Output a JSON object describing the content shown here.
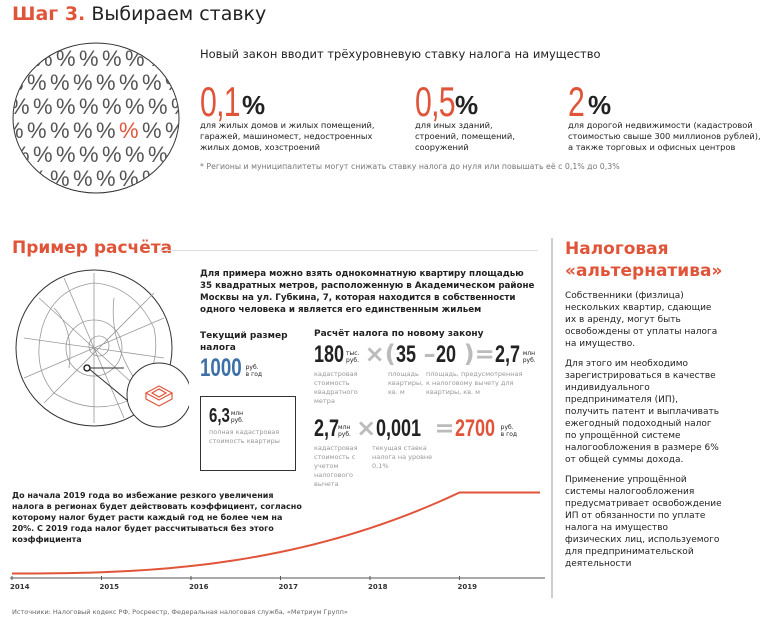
{
  "header": {
    "step": "Шаг 3.",
    "title": "Выбираем ставку"
  },
  "rates": {
    "intro": "Новый закон вводит трёхуровневую ставку налога на имущество",
    "items": [
      {
        "value": "0,1",
        "unit": "%",
        "desc": "для жилых домов и жилых помещений, гаражей, машиномест, недостроенных жилых домов, хозстроений"
      },
      {
        "value": "0,5",
        "unit": "%",
        "desc": "для иных зданий, строений, помещений, сооружений"
      },
      {
        "value": "2",
        "unit": "%",
        "desc": "для дорогой недвижимости (кадастровой стоимостью свыше 300 миллионов рублей), а также торговых и офисных центров"
      }
    ],
    "note": "* Регионы и муниципалитеты могут снижать ставку налога до нуля или повышать её с 0,1% до 0,3%",
    "accent": "#e0553a"
  },
  "example": {
    "title": "Пример расчёта",
    "text": "Для примера можно взять однокомнатную квартиру площадью 35 квадратных метров, расположенную в Академическом районе Москвы на ул. Губкина, 7, которая находится в собственности одного человека и является его единственным жильем",
    "current": {
      "label": "Текущий размер налога",
      "value": "1000",
      "unit1": "руб.",
      "unit2": "в год",
      "color": "#3d6fa8"
    },
    "cadastral": {
      "value": "6,3",
      "unit1": "млн",
      "unit2": "руб.",
      "desc": "полная кадастровая стоимость квартиры"
    },
    "calc": {
      "title": "Расчёт налога по новому закону",
      "row1": {
        "a": "180",
        "a_u1": "тыс.",
        "a_u2": "руб.",
        "b": "35",
        "c": "20",
        "r": "2,7",
        "r_u1": "млн",
        "r_u2": "руб.",
        "a_desc": "кадастровая стоимость квадратного метра",
        "b_desc": "площадь квартиры, кв. м",
        "c_desc": "площадь, предусмотренная к налоговому вычету для квартиры, кв. м"
      },
      "row2": {
        "a": "2,7",
        "a_u1": "млн",
        "a_u2": "руб.",
        "b": "0,001",
        "r": "2700",
        "r_u1": "руб.",
        "r_u2": "в год",
        "a_desc": "кадастровая стоимость с учетом налогового вычета",
        "b_desc": "текущая ставка налога на уровне 0,1%"
      }
    },
    "coef_text": "До начала 2019 года во избежание резкого увеличения налога в регионах будет действовать коэффициент, согласно которому налог будет расти каждый год не более чем на 20%. С 2019 года налог будет рассчитываться без этого коэффициента"
  },
  "chart_data": {
    "type": "line",
    "x": [
      2014,
      2015,
      2016,
      2017,
      2018,
      2019,
      2019.9
    ],
    "values": [
      1000,
      1050,
      1200,
      1500,
      1950,
      2700,
      2700
    ],
    "xticks": [
      "2014",
      "2015",
      "2016",
      "2017",
      "2018",
      "2019"
    ],
    "xlim": [
      2014,
      2019.9
    ],
    "ylim": [
      800,
      2900
    ],
    "grid": false,
    "color": "#e0553a"
  },
  "sidebar": {
    "title": "Налоговая «альтернатива»",
    "paragraphs": [
      "Собственники (физлица) нескольких квартир, сдающие их в аренду, могут быть освобождены от уплаты налога на имущество.",
      "Для этого им необходимо зарегистрироваться в качестве индивидуального предпринимателя (ИП), получить патент и выплачивать ежегодный подоходный налог по упрощённой системе налогообложения в размере 6% от общей суммы дохода.",
      "Применение упрощённой системы налогообложения предусматривает освобождение ИП от обязанности по уплате налога на имущество физических лиц, используемого для предпринимательской деятельности"
    ]
  },
  "footer": {
    "sources": "Источники: Налоговый кодекс РФ, Росреестр, Федеральная налоговая служба, «Метриум Групп»"
  }
}
